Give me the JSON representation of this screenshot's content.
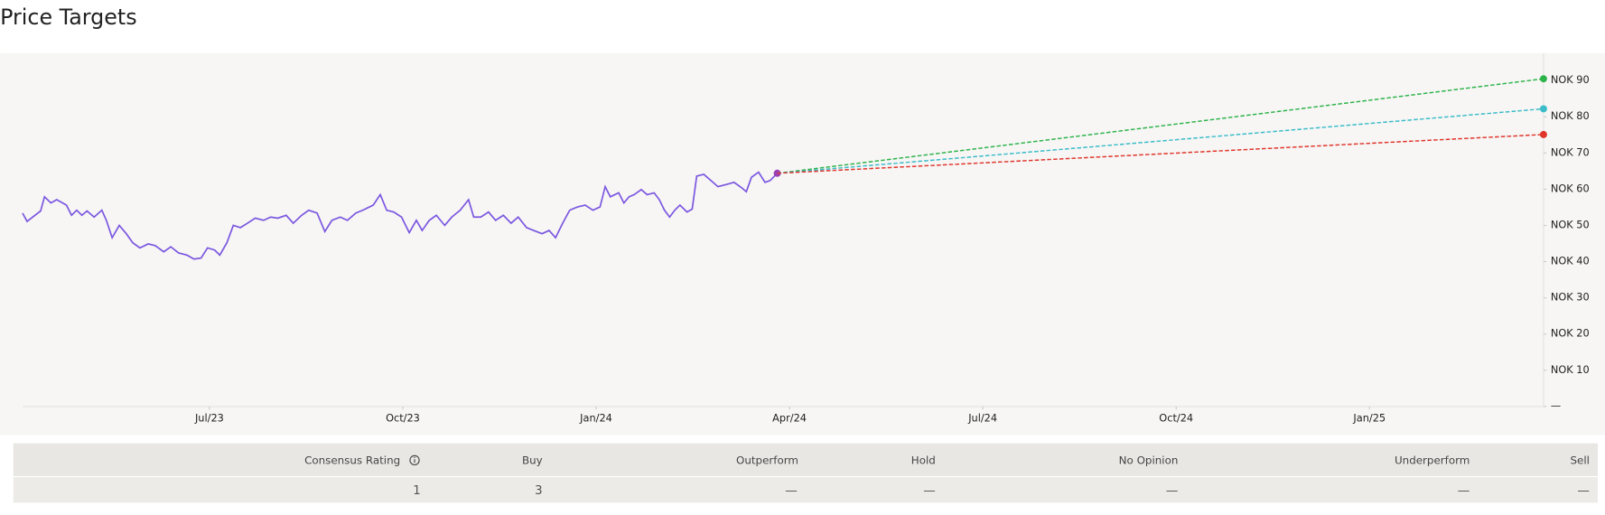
{
  "title": "Price Targets",
  "chart_data": {
    "type": "line",
    "xlim": [
      0.1,
      23.7
    ],
    "xticks": [
      {
        "value": 3,
        "label": "Jul/23"
      },
      {
        "value": 6,
        "label": "Oct/23"
      },
      {
        "value": 9,
        "label": "Jan/24"
      },
      {
        "value": 12,
        "label": "Apr/24"
      },
      {
        "value": 15,
        "label": "Jul/24"
      },
      {
        "value": 18,
        "label": "Oct/24"
      },
      {
        "value": 21,
        "label": "Jan/25"
      }
    ],
    "ylim": [
      0,
      95
    ],
    "yticks": [
      {
        "value": 0,
        "label": "—"
      },
      {
        "value": 10,
        "label": "NOK 10"
      },
      {
        "value": 20,
        "label": "NOK 20"
      },
      {
        "value": 30,
        "label": "NOK 30"
      },
      {
        "value": 40,
        "label": "NOK 40"
      },
      {
        "value": 50,
        "label": "NOK 50"
      },
      {
        "value": 60,
        "label": "NOK 60"
      },
      {
        "value": 70,
        "label": "NOK 70"
      },
      {
        "value": 80,
        "label": "NOK 80"
      },
      {
        "value": 90,
        "label": "NOK 90"
      }
    ],
    "series": [
      {
        "color": "#7b57e0",
        "dashed": false,
        "end_marker": "#9b3fb5",
        "x": [
          0.1,
          0.17,
          0.38,
          0.44,
          0.54,
          0.63,
          0.78,
          0.86,
          0.94,
          1.02,
          1.1,
          1.21,
          1.33,
          1.4,
          1.49,
          1.6,
          1.71,
          1.81,
          1.92,
          2.05,
          2.16,
          2.29,
          2.4,
          2.52,
          2.65,
          2.76,
          2.87,
          2.97,
          3.08,
          3.16,
          3.27,
          3.37,
          3.48,
          3.59,
          3.71,
          3.84,
          3.95,
          4.06,
          4.19,
          4.3,
          4.43,
          4.54,
          4.67,
          4.79,
          4.9,
          5.03,
          5.14,
          5.27,
          5.38,
          5.54,
          5.65,
          5.75,
          5.86,
          5.98,
          6.1,
          6.21,
          6.3,
          6.41,
          6.52,
          6.65,
          6.76,
          6.89,
          7.02,
          7.1,
          7.21,
          7.33,
          7.44,
          7.56,
          7.68,
          7.79,
          7.92,
          8.03,
          8.16,
          8.27,
          8.37,
          8.48,
          8.59,
          8.71,
          8.83,
          8.95,
          9.06,
          9.14,
          9.22,
          9.35,
          9.43,
          9.51,
          9.59,
          9.7,
          9.79,
          9.9,
          9.98,
          10.06,
          10.14,
          10.22,
          10.3,
          10.41,
          10.49,
          10.56,
          10.67,
          10.78,
          10.89,
          11.02,
          11.14,
          11.25,
          11.33,
          11.41,
          11.52,
          11.62,
          11.7,
          11.81
        ],
        "values": [
          53.4,
          51.1,
          54.0,
          57.9,
          56.2,
          57.1,
          55.6,
          52.8,
          54.2,
          52.8,
          54.0,
          52.3,
          54.2,
          51.4,
          46.6,
          50.0,
          47.7,
          45.2,
          43.8,
          44.9,
          44.4,
          42.7,
          44.1,
          42.4,
          41.8,
          40.7,
          41.0,
          43.8,
          43.2,
          41.8,
          45.2,
          50.0,
          49.4,
          50.6,
          52.0,
          51.4,
          52.3,
          52.0,
          52.8,
          50.6,
          52.8,
          54.2,
          53.4,
          48.3,
          51.4,
          52.3,
          51.4,
          53.4,
          54.2,
          55.6,
          58.5,
          54.2,
          53.7,
          52.3,
          48.0,
          51.4,
          48.6,
          51.4,
          52.8,
          50.0,
          52.3,
          54.2,
          57.1,
          52.3,
          52.3,
          53.7,
          51.4,
          52.8,
          50.6,
          52.3,
          49.4,
          48.6,
          47.7,
          48.6,
          46.6,
          50.6,
          54.2,
          55.1,
          55.6,
          54.2,
          55.1,
          60.7,
          57.9,
          59.0,
          56.2,
          57.9,
          58.5,
          59.9,
          58.5,
          59.0,
          57.1,
          54.2,
          52.3,
          54.2,
          55.6,
          53.7,
          54.5,
          63.6,
          64.1,
          62.4,
          60.7,
          61.3,
          61.9,
          60.5,
          59.3,
          63.3,
          64.7,
          61.9,
          62.4,
          64.4
        ]
      },
      {
        "color": "#2db34a",
        "dashed": true,
        "end_marker": "#2db34a",
        "x": [
          11.81,
          23.7
        ],
        "values": [
          64.4,
          90.5
        ]
      },
      {
        "color": "#3bbcc8",
        "dashed": true,
        "end_marker": "#3bbcc8",
        "x": [
          11.81,
          23.7
        ],
        "values": [
          64.4,
          82.2
        ]
      },
      {
        "color": "#e0352b",
        "dashed": true,
        "end_marker": "#e0352b",
        "x": [
          11.81,
          23.7
        ],
        "values": [
          64.4,
          75.1
        ]
      }
    ]
  },
  "table": {
    "headers": [
      "Consensus Rating",
      "Buy",
      "Outperform",
      "Hold",
      "No Opinion",
      "Underperform",
      "Sell"
    ],
    "rows": [
      [
        1,
        3,
        "—",
        "—",
        "—",
        "—",
        "—"
      ]
    ]
  }
}
